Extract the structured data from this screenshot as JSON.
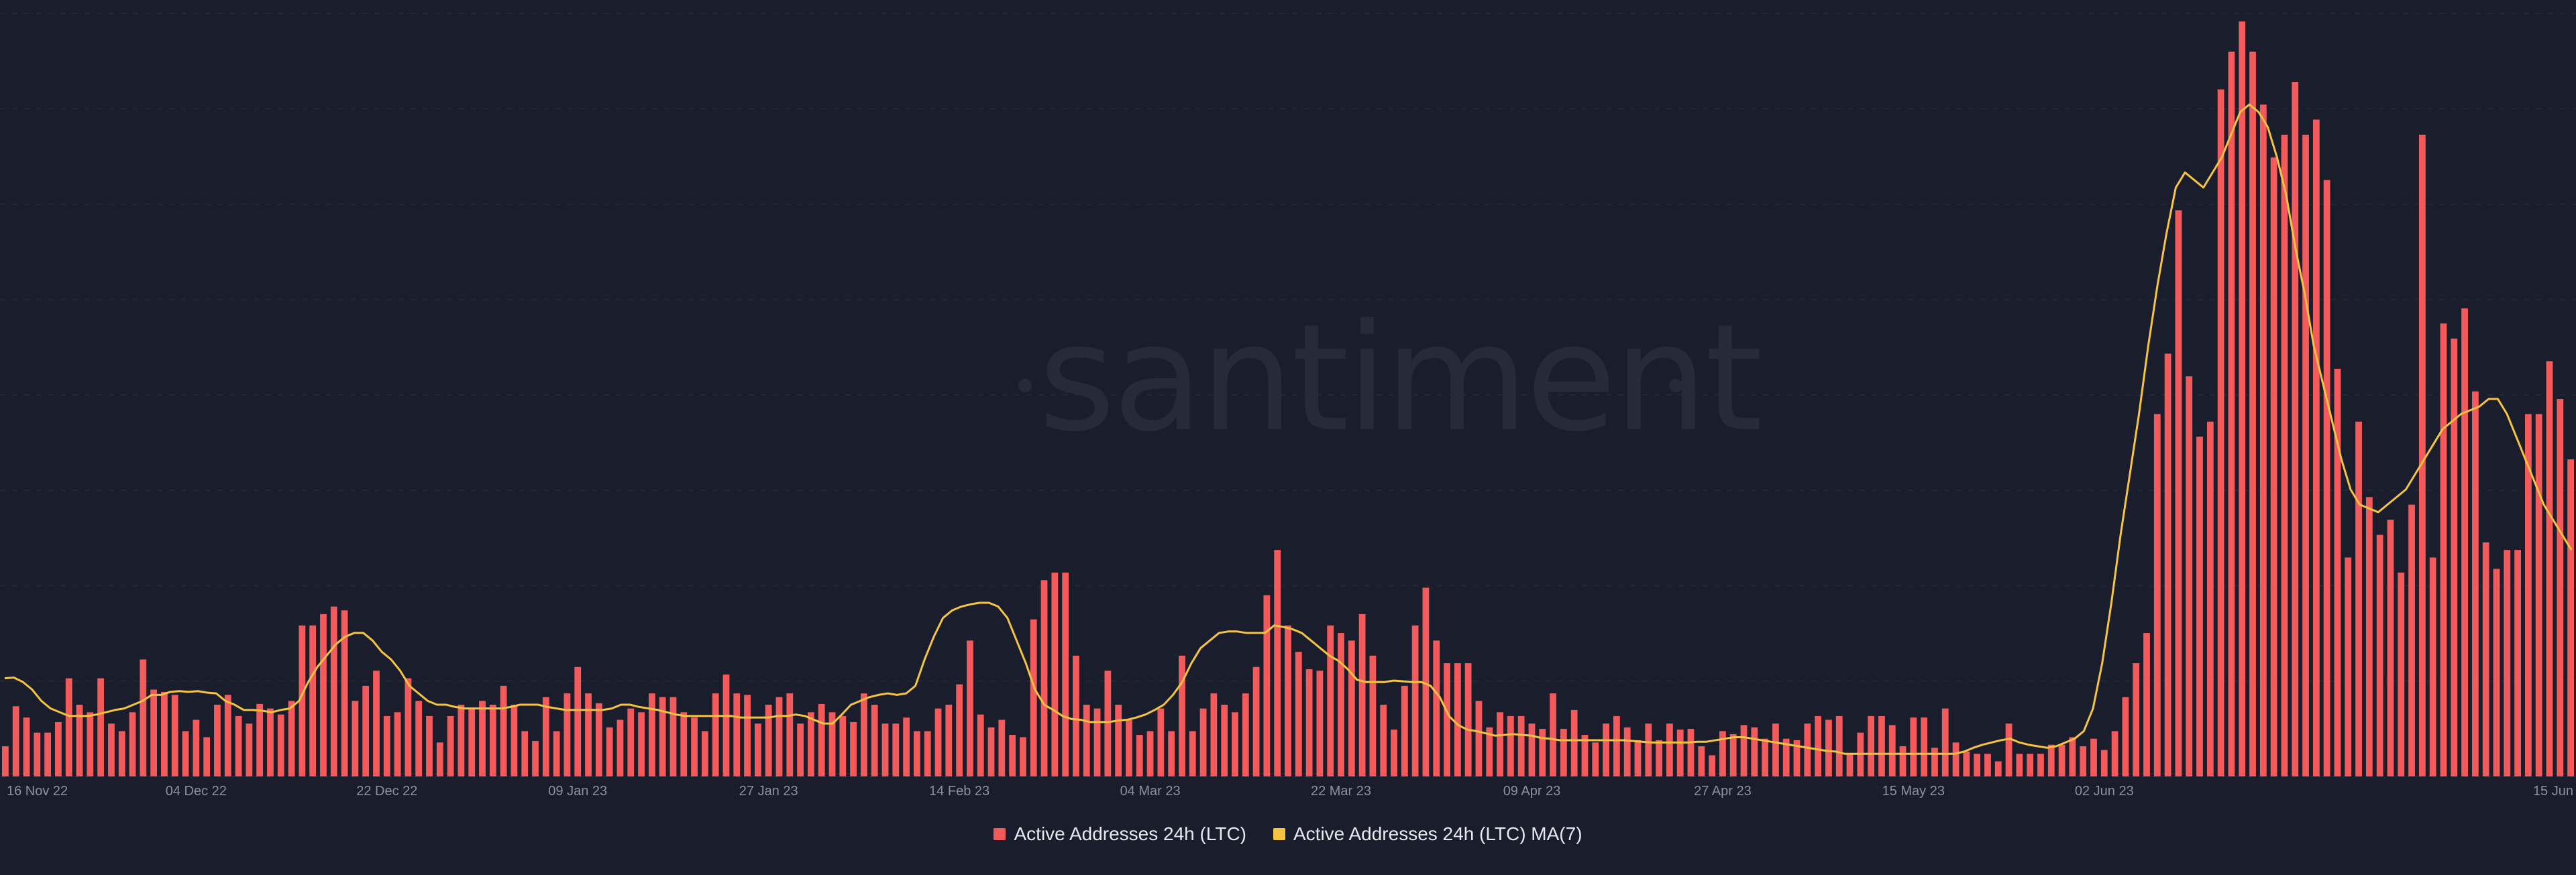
{
  "watermark": "santiment",
  "legend": [
    {
      "label": "Active Addresses 24h (LTC)",
      "color": "#f25a5c"
    },
    {
      "label": "Active Addresses 24h (LTC) MA(7)",
      "color": "#f5c542"
    }
  ],
  "chart_data": {
    "type": "bar",
    "title": "",
    "xlabel": "",
    "ylabel": "",
    "grid": true,
    "legend_position": "bottom-center",
    "x_tick_labels": [
      "16 Nov 22",
      "04 Dec 22",
      "22 Dec 22",
      "09 Jan 23",
      "27 Jan 23",
      "14 Feb 23",
      "04 Mar 23",
      "22 Mar 23",
      "09 Apr 23",
      "27 Apr 23",
      "15 May 23",
      "02 Jun 23",
      "15 Jun"
    ],
    "x_tick_index": [
      0,
      18,
      36,
      54,
      72,
      90,
      108,
      126,
      144,
      162,
      180,
      198,
      211
    ],
    "ylim": [
      0,
      1000
    ],
    "series": [
      {
        "name": "Active Addresses 24h (LTC)",
        "color": "#f25a5c",
        "values": [
          40,
          93,
          78,
          58,
          58,
          72,
          130,
          95,
          85,
          130,
          70,
          60,
          85,
          155,
          115,
          112,
          108,
          60,
          75,
          52,
          95,
          108,
          80,
          70,
          96,
          90,
          82,
          100,
          200,
          200,
          215,
          225,
          220,
          100,
          120,
          140,
          80,
          85,
          130,
          100,
          80,
          45,
          80,
          95,
          90,
          100,
          95,
          120,
          95,
          60,
          47,
          105,
          60,
          110,
          145,
          110,
          97,
          65,
          75,
          90,
          85,
          110,
          105,
          105,
          85,
          78,
          60,
          110,
          135,
          110,
          108,
          70,
          95,
          105,
          110,
          70,
          85,
          96,
          85,
          80,
          72,
          110,
          95,
          70,
          70,
          78,
          60,
          60,
          90,
          95,
          122,
          180,
          82,
          65,
          75,
          55,
          52,
          208,
          260,
          270,
          270,
          160,
          95,
          90,
          140,
          95,
          75,
          55,
          60,
          90,
          60,
          160,
          60,
          90,
          110,
          95,
          85,
          110,
          145,
          240,
          300,
          200,
          165,
          142,
          140,
          200,
          190,
          180,
          215,
          160,
          95,
          62,
          120,
          200,
          250,
          180,
          150,
          150,
          150,
          100,
          65,
          85,
          80,
          80,
          70,
          63,
          110,
          63,
          88,
          55,
          45,
          70,
          80,
          65,
          48,
          70,
          48,
          70,
          62,
          63,
          40,
          28,
          60,
          56,
          68,
          65,
          50,
          70,
          50,
          48,
          70,
          80,
          75,
          80,
          30,
          58,
          80,
          80,
          68,
          40,
          78,
          78,
          38,
          90,
          45,
          33,
          30,
          30,
          20,
          70,
          30,
          30,
          30,
          42,
          42,
          52,
          40,
          50,
          35,
          60,
          105,
          150,
          190,
          480,
          560,
          750,
          530,
          450,
          470,
          910,
          960,
          1000,
          960,
          890,
          820,
          850,
          920,
          850,
          870,
          790,
          540,
          290,
          470,
          370,
          320,
          340,
          270,
          360,
          850,
          290,
          600,
          580,
          620,
          510,
          310,
          275,
          300,
          300,
          480,
          480,
          550,
          500,
          420
        ]
      },
      {
        "name": "Active Addresses 24h (LTC) MA(7)",
        "color": "#f5c542",
        "values": [
          130,
          131,
          125,
          115,
          100,
          90,
          85,
          80,
          80,
          80,
          82,
          85,
          88,
          90,
          95,
          100,
          108,
          108,
          112,
          113,
          112,
          113,
          111,
          110,
          100,
          95,
          88,
          88,
          87,
          85,
          88,
          90,
          100,
          125,
          145,
          160,
          175,
          185,
          190,
          190,
          180,
          165,
          155,
          140,
          120,
          110,
          100,
          95,
          95,
          92,
          90,
          90,
          90,
          90,
          90,
          92,
          95,
          95,
          95,
          92,
          90,
          88,
          88,
          88,
          88,
          88,
          90,
          95,
          95,
          92,
          90,
          88,
          85,
          82,
          80,
          80,
          80,
          80,
          80,
          80,
          78,
          78,
          78,
          78,
          80,
          80,
          82,
          80,
          75,
          70,
          70,
          82,
          95,
          100,
          105,
          108,
          110,
          108,
          110,
          120,
          155,
          185,
          210,
          220,
          225,
          228,
          230,
          230,
          225,
          210,
          180,
          150,
          115,
          95,
          88,
          80,
          76,
          75,
          72,
          72,
          72,
          74,
          75,
          78,
          82,
          88,
          95,
          108,
          125,
          150,
          170,
          180,
          190,
          192,
          192,
          190,
          190,
          190,
          200,
          198,
          195,
          190,
          180,
          170,
          160,
          153,
          142,
          128,
          125,
          125,
          125,
          127,
          126,
          125,
          125,
          120,
          105,
          80,
          68,
          62,
          60,
          57,
          54,
          55,
          56,
          55,
          54,
          51,
          50,
          48,
          48,
          48,
          48,
          48,
          48,
          48,
          48,
          47,
          46,
          45,
          45,
          45,
          45,
          45,
          46,
          46,
          48,
          50,
          52,
          52,
          50,
          48,
          46,
          44,
          42,
          40,
          38,
          36,
          34,
          33,
          30,
          30,
          30,
          30,
          30,
          30,
          30,
          30,
          30,
          30,
          30,
          30,
          30,
          33,
          38,
          42,
          45,
          48,
          50,
          45,
          42,
          40,
          38,
          40,
          45,
          50,
          60,
          90,
          150,
          230,
          320,
          400,
          480,
          570,
          650,
          720,
          780,
          800,
          790,
          780,
          800,
          820,
          850,
          880,
          890,
          880,
          860,
          820,
          770,
          700,
          640,
          570,
          520,
          470,
          420,
          380,
          360,
          355,
          350,
          360,
          370,
          380,
          400,
          420,
          440,
          460,
          470,
          480,
          485,
          490,
          500,
          500,
          480,
          450,
          420,
          390,
          360,
          340,
          320,
          300
        ]
      }
    ]
  }
}
